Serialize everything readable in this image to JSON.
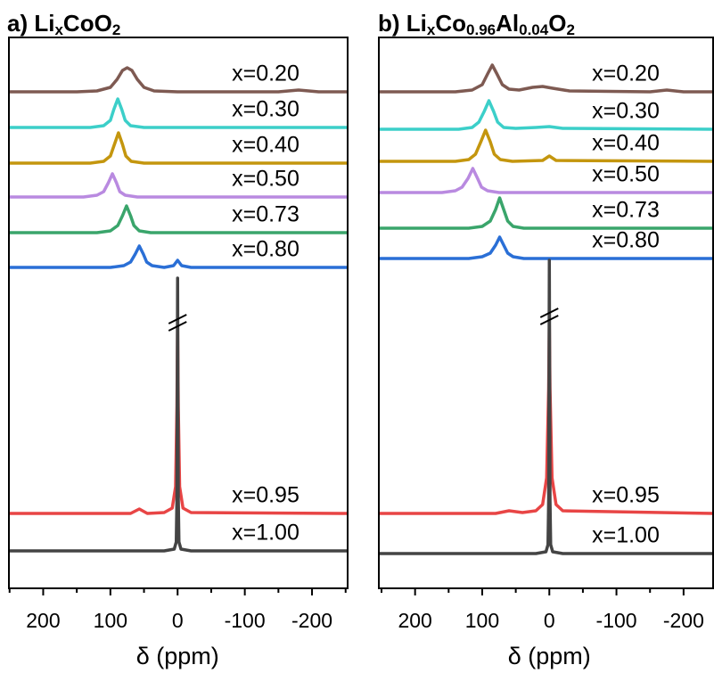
{
  "chart_data": [
    {
      "type": "line",
      "title_parts": [
        {
          "text": "a) Li"
        },
        {
          "text": "x",
          "sub": true
        },
        {
          "text": "CoO"
        },
        {
          "text": "2",
          "sub": true
        }
      ],
      "xlabel": "δ (ppm)",
      "xlim": [
        251,
        -253
      ],
      "xticks": [
        200,
        100,
        0,
        -100,
        -200
      ],
      "minor_xticks": [
        250,
        150,
        50,
        -50,
        -150,
        -250
      ],
      "series": [
        {
          "name": "x=0.20",
          "color": "#7e5a52",
          "x": [
            251,
            150,
            120,
            100,
            90,
            82,
            75,
            68,
            60,
            50,
            35,
            0,
            -150,
            -180,
            -210,
            -253
          ],
          "values": [
            0,
            0,
            1,
            5,
            14,
            24,
            27,
            24,
            14,
            5,
            1,
            0,
            0,
            2,
            0,
            0
          ]
        },
        {
          "name": "x=0.30",
          "color": "#3ccfc9",
          "x": [
            251,
            130,
            110,
            100,
            95,
            89,
            83,
            78,
            70,
            50,
            0,
            -253
          ],
          "values": [
            0,
            0,
            2,
            8,
            20,
            32,
            20,
            8,
            2,
            0,
            0,
            0
          ]
        },
        {
          "name": "x=0.40",
          "color": "#c4960e",
          "x": [
            251,
            130,
            110,
            100,
            94,
            88,
            82,
            77,
            69,
            50,
            0,
            -253
          ],
          "values": [
            0,
            0,
            2,
            8,
            21,
            34,
            21,
            8,
            2,
            0,
            0,
            0
          ]
        },
        {
          "name": "x=0.50",
          "color": "#b98ae0",
          "x": [
            251,
            140,
            120,
            110,
            103,
            97,
            91,
            86,
            78,
            60,
            0,
            -253
          ],
          "values": [
            0,
            0,
            2,
            6,
            16,
            26,
            16,
            6,
            2,
            0,
            0,
            0
          ]
        },
        {
          "name": "x=0.73",
          "color": "#3aa56b",
          "x": [
            251,
            120,
            100,
            89,
            82,
            76,
            70,
            65,
            57,
            40,
            0,
            -253
          ],
          "values": [
            0,
            0,
            2,
            8,
            19,
            30,
            19,
            8,
            2,
            0,
            0,
            0
          ]
        },
        {
          "name": "x=0.80",
          "color": "#2a6fd6",
          "x": [
            251,
            100,
            80,
            70,
            63,
            57,
            51,
            46,
            38,
            20,
            6,
            0,
            -6,
            -20,
            -253
          ],
          "values": [
            0,
            0,
            2,
            6,
            15,
            24,
            15,
            6,
            2,
            0,
            2,
            8,
            2,
            0,
            0
          ]
        },
        {
          "name": "x=0.95",
          "color": "#e84545",
          "x": [
            251,
            70,
            57,
            45,
            20,
            8,
            3,
            1,
            0,
            -1,
            -3,
            -8,
            -20,
            -253
          ],
          "values": [
            0,
            0,
            5,
            0,
            1,
            6,
            30,
            120,
            211,
            120,
            30,
            6,
            1,
            0
          ]
        },
        {
          "name": "x=1.00",
          "color": "#444444",
          "x": [
            251,
            20,
            5,
            2,
            1,
            0,
            -1,
            -2,
            -5,
            -20,
            -253
          ],
          "values": [
            0,
            0,
            2,
            10,
            60,
            306,
            60,
            10,
            2,
            0,
            0
          ]
        }
      ]
    },
    {
      "type": "line",
      "title_parts": [
        {
          "text": "b) Li"
        },
        {
          "text": "x",
          "sub": true
        },
        {
          "text": "Co"
        },
        {
          "text": "0.96",
          "sub": true
        },
        {
          "text": "Al"
        },
        {
          "text": "0.04",
          "sub": true
        },
        {
          "text": "O"
        },
        {
          "text": "2",
          "sub": true
        }
      ],
      "xlabel": "δ (ppm)",
      "xlim": [
        254,
        -244
      ],
      "xticks": [
        200,
        100,
        0,
        -100,
        -200
      ],
      "minor_xticks": [
        250,
        150,
        50,
        -50,
        -150
      ],
      "series": [
        {
          "name": "x=0.20",
          "color": "#7e5a52",
          "x": [
            254,
            140,
            115,
            100,
            92,
            85,
            78,
            70,
            60,
            45,
            25,
            10,
            -5,
            -30,
            -150,
            -175,
            -200,
            -244
          ],
          "values": [
            0,
            0,
            2,
            8,
            20,
            30,
            20,
            8,
            3,
            2,
            5,
            6,
            4,
            1,
            0,
            2,
            0,
            0
          ]
        },
        {
          "name": "x=0.30",
          "color": "#3ccfc9",
          "x": [
            254,
            135,
            115,
            105,
            97,
            90,
            83,
            77,
            68,
            50,
            20,
            0,
            -20,
            -244
          ],
          "values": [
            0,
            0,
            2,
            8,
            20,
            32,
            20,
            8,
            2,
            1,
            2,
            3,
            1,
            0
          ]
        },
        {
          "name": "x=0.40",
          "color": "#c4960e",
          "x": [
            254,
            140,
            120,
            110,
            102,
            95,
            88,
            82,
            73,
            55,
            10,
            0,
            -10,
            -244
          ],
          "values": [
            0,
            0,
            2,
            8,
            22,
            35,
            22,
            8,
            2,
            0,
            1,
            6,
            1,
            0
          ]
        },
        {
          "name": "x=0.50",
          "color": "#b98ae0",
          "x": [
            254,
            160,
            140,
            130,
            121,
            114,
            107,
            101,
            92,
            75,
            0,
            -244
          ],
          "values": [
            0,
            0,
            2,
            6,
            16,
            27,
            16,
            6,
            2,
            0,
            0,
            0
          ]
        },
        {
          "name": "x=0.73",
          "color": "#3aa56b",
          "x": [
            254,
            120,
            100,
            88,
            80,
            74,
            68,
            62,
            54,
            38,
            0,
            -244
          ],
          "values": [
            0,
            0,
            2,
            8,
            21,
            34,
            21,
            8,
            2,
            0,
            0,
            0
          ]
        },
        {
          "name": "x=0.80",
          "color": "#2a6fd6",
          "x": [
            254,
            120,
            100,
            88,
            80,
            74,
            68,
            62,
            54,
            38,
            0,
            -244
          ],
          "values": [
            0,
            0,
            2,
            6,
            15,
            24,
            15,
            6,
            2,
            0,
            0,
            0
          ]
        },
        {
          "name": "x=0.95",
          "color": "#e84545",
          "x": [
            254,
            80,
            60,
            40,
            20,
            10,
            4,
            1,
            0,
            -1,
            -4,
            -10,
            -20,
            -244
          ],
          "values": [
            0,
            0,
            3,
            1,
            3,
            10,
            40,
            140,
            211,
            140,
            40,
            10,
            3,
            0
          ]
        },
        {
          "name": "x=1.00",
          "color": "#444444",
          "x": [
            254,
            20,
            5,
            2,
            1,
            0,
            -1,
            -2,
            -5,
            -20,
            -244
          ],
          "values": [
            0,
            0,
            2,
            10,
            60,
            329,
            60,
            10,
            2,
            0,
            0
          ]
        }
      ]
    }
  ]
}
